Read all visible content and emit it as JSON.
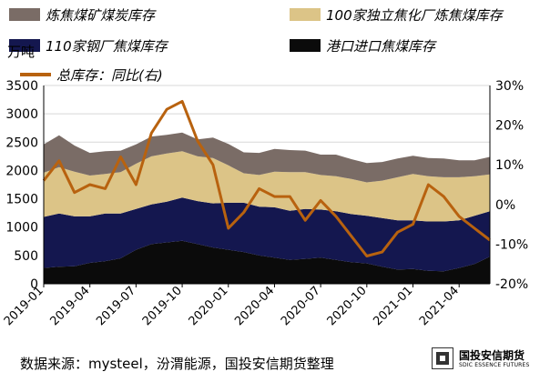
{
  "legend": {
    "coal_mine": "炼焦煤矿煤炭库存",
    "independent": "100家独立焦化厂炼焦煤库存",
    "steel": "110家钢厂焦煤库存",
    "port": "港口进口焦煤库存",
    "yoy": "总库存：同比(右)"
  },
  "unit": "万吨",
  "source": "数据来源：mysteel，汾渭能源，国投安信期货整理",
  "logo": {
    "cn": "国投安信期货",
    "en": "SDIC ESSENCE FUTURES"
  },
  "colors": {
    "port": "#0b0b0b",
    "steel": "#14174f",
    "independent": "#dcc487",
    "coal_mine": "#7a6c66",
    "yoy": "#b8620f",
    "grid": "#d8d8d8"
  },
  "chart_data": {
    "type": "area",
    "title": "",
    "x": [
      "2019-01",
      "2019-02",
      "2019-03",
      "2019-04",
      "2019-05",
      "2019-06",
      "2019-07",
      "2019-08",
      "2019-09",
      "2019-10",
      "2019-11",
      "2019-12",
      "2020-01",
      "2020-02",
      "2020-03",
      "2020-04",
      "2020-05",
      "2020-06",
      "2020-07",
      "2020-08",
      "2020-09",
      "2020-10",
      "2020-11",
      "2020-12",
      "2021-01",
      "2021-02",
      "2021-03",
      "2021-04",
      "2021-05",
      "2021-06"
    ],
    "x_ticks": [
      "2019-01",
      "2019-04",
      "2019-07",
      "2019-10",
      "2020-01",
      "2020-04",
      "2020-07",
      "2020-10",
      "2021-01",
      "2021-04"
    ],
    "ylim": [
      0,
      3500
    ],
    "y_ticks": [
      0,
      500,
      1000,
      1500,
      2000,
      2500,
      3000,
      3500
    ],
    "y2lim": [
      -20,
      30
    ],
    "y2_ticks": [
      "-20%",
      "-10%",
      "0%",
      "10%",
      "20%",
      "30%"
    ],
    "y2_values": [
      -20,
      -10,
      0,
      10,
      20,
      30
    ],
    "stacked": true,
    "grid": true,
    "legend_position": "top",
    "series": [
      {
        "name": "港口进口焦煤库存",
        "type": "area",
        "axis": "left",
        "values": [
          280,
          300,
          310,
          370,
          400,
          450,
          600,
          700,
          730,
          760,
          700,
          640,
          600,
          560,
          500,
          460,
          420,
          440,
          460,
          420,
          380,
          360,
          300,
          250,
          260,
          230,
          220,
          280,
          350,
          480
        ]
      },
      {
        "name": "110家钢厂焦煤库存",
        "type": "area",
        "axis": "left",
        "values": [
          900,
          940,
          880,
          820,
          840,
          790,
          720,
          700,
          720,
          760,
          760,
          780,
          830,
          870,
          860,
          890,
          870,
          880,
          850,
          860,
          850,
          840,
          860,
          870,
          860,
          870,
          880,
          840,
          850,
          800
        ]
      },
      {
        "name": "100家独立焦化厂炼焦煤库存",
        "type": "area",
        "axis": "left",
        "values": [
          780,
          820,
          790,
          720,
          700,
          730,
          800,
          850,
          850,
          820,
          790,
          800,
          660,
          520,
          560,
          630,
          680,
          650,
          610,
          620,
          620,
          590,
          660,
          760,
          820,
          800,
          780,
          760,
          700,
          650
        ]
      },
      {
        "name": "炼焦煤矿煤炭库存",
        "type": "area",
        "axis": "left",
        "values": [
          500,
          560,
          460,
          400,
          400,
          380,
          340,
          350,
          330,
          330,
          300,
          360,
          380,
          370,
          390,
          400,
          390,
          380,
          360,
          380,
          350,
          340,
          330,
          330,
          320,
          320,
          330,
          300,
          280,
          310
        ]
      },
      {
        "name": "总库存：同比(右)",
        "type": "line",
        "axis": "right",
        "values": [
          6,
          11,
          3,
          5,
          4,
          12,
          5,
          18,
          24,
          26,
          16,
          10,
          -6,
          -2,
          4,
          2,
          2,
          -4,
          1,
          -3,
          -8,
          -13,
          -12,
          -7,
          -5,
          5,
          2,
          -3,
          -6,
          -9
        ]
      }
    ]
  }
}
